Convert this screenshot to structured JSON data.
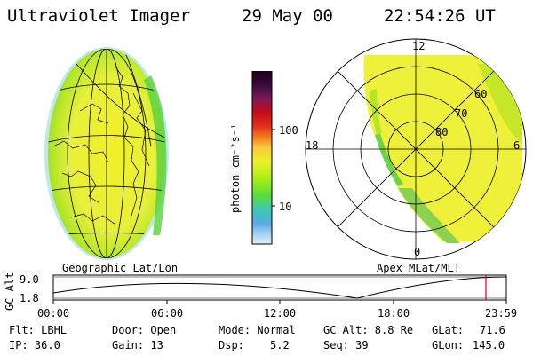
{
  "header": {
    "instrument": "Ultraviolet Imager",
    "date": "29 May 00",
    "time": "22:54:26 UT"
  },
  "left_panel": {
    "caption": "Geographic Lat/Lon"
  },
  "right_panel": {
    "caption": "Apex MLat/MLT",
    "mlt_labels": {
      "top": "12",
      "left": "18",
      "right": "6",
      "bottom": "0"
    },
    "lat_labels": [
      "60",
      "70",
      "80"
    ]
  },
  "colorbar": {
    "unit_label": "photon cm⁻²s⁻¹",
    "ticks": [
      "100",
      "10"
    ],
    "colors": [
      "#1a0016",
      "#3a0a3a",
      "#7a1a5a",
      "#a0125a",
      "#c80a1a",
      "#e0301a",
      "#f5781e",
      "#fac83c",
      "#f0f028",
      "#aaf014",
      "#5adc3c",
      "#3cc8b4",
      "#5aaae6",
      "#a0d2f0",
      "#e6f0f5"
    ]
  },
  "timeline": {
    "ylabel": "GC Alt",
    "ytick_top": "9.0",
    "ytick_bottom": "1.8",
    "xticks": [
      "00:00",
      "06:00",
      "12:00",
      "18:00",
      "23:59"
    ],
    "marker_color": "#e00000"
  },
  "info": {
    "filter": "Flt: LBHL",
    "ip": "IP: 36.0",
    "door": "Door: Open",
    "gain": "Gain: 13",
    "mode": "Mode: Normal",
    "dsp_label": "Dsp:",
    "dsp_value": "5.2",
    "gc_alt": "GC Alt: 8.8 Re",
    "seq": "Seq: 39",
    "glat_label": "GLat:",
    "glat_value": "71.6",
    "glon_label": "GLon:",
    "glon_value": "145.0"
  }
}
